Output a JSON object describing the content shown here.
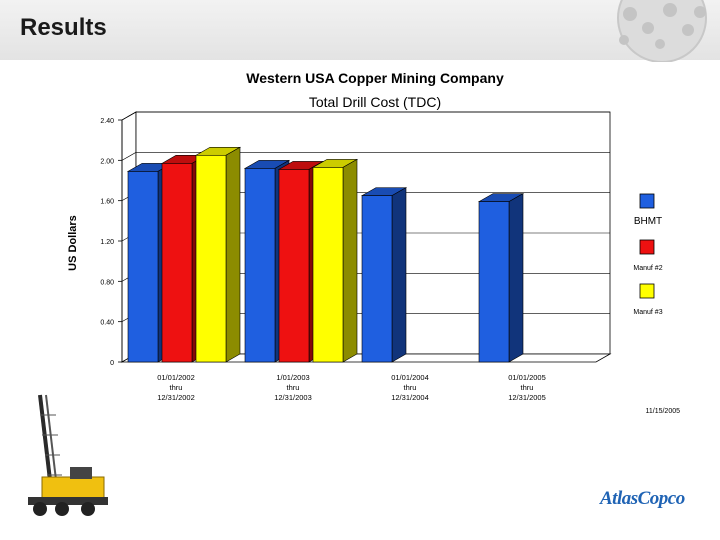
{
  "header": {
    "title": "Results"
  },
  "footer": {
    "date": "11/15/2005",
    "logo_text": "AtlasCopco"
  },
  "colors": {
    "BHMT": "#1f5fe0",
    "Manuf #2": "#ee1111",
    "Manuf #3": "#ffff00"
  },
  "chart_data": {
    "type": "bar",
    "title": "Western USA Copper Mining Company",
    "subtitle": "Total Drill Cost (TDC)",
    "ylabel": "US Dollars",
    "xlabel": "",
    "ylim": [
      0,
      2.4
    ],
    "yticks": [
      "0",
      "0.40",
      "0.80",
      "1.20",
      "1.60",
      "2.00",
      "2.40"
    ],
    "categories": [
      [
        "01/01/2002",
        "thru",
        "12/31/2002"
      ],
      [
        "1/01/2003",
        "thru",
        "12/31/2003"
      ],
      [
        "01/01/2004",
        "thru",
        "12/31/2004"
      ],
      [
        "01/01/2005",
        "thru",
        "12/31/2005"
      ]
    ],
    "legend_position": "right",
    "series": [
      {
        "name": "BHMT",
        "legend_label": "BHMT",
        "values": [
          1.89,
          1.92,
          1.65,
          1.59
        ]
      },
      {
        "name": "Manuf #2",
        "legend_label": "Manuf #2",
        "values": [
          1.97,
          1.91,
          null,
          null
        ]
      },
      {
        "name": "Manuf #3",
        "legend_label": "Manuf #3",
        "values": [
          2.05,
          1.93,
          null,
          null
        ]
      }
    ],
    "grid": true
  }
}
